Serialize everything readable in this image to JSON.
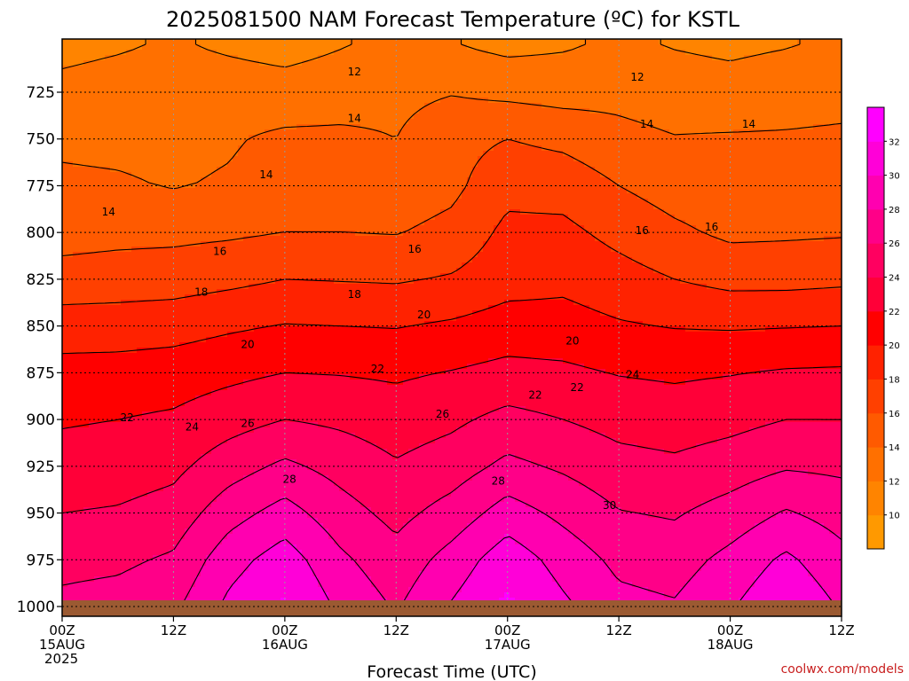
{
  "title": "2025081500 NAM Forecast Temperature (ºC) for KSTL",
  "credit": "coolwx.com/models",
  "colors": {
    "levels": [
      8,
      10,
      12,
      14,
      16,
      18,
      20,
      22,
      24,
      26,
      28,
      30,
      32,
      34
    ],
    "fills": [
      "#ff9900",
      "#ff8400",
      "#ff7000",
      "#ff5a00",
      "#ff4000",
      "#ff2200",
      "#ff0000",
      "#ff0038",
      "#ff0060",
      "#ff0088",
      "#ff00b0",
      "#ff00d8",
      "#ff00ff"
    ],
    "ground": "#9b5a32"
  },
  "chart_data": {
    "type": "heatmap",
    "title": "2025081500 NAM Forecast Temperature (ºC) for KSTL",
    "xlabel": "Forecast Time (UTC)",
    "ylabel": "",
    "x_hours": [
      0,
      6,
      12,
      18,
      24,
      30,
      36,
      42,
      48,
      54,
      60,
      66,
      72,
      78,
      84
    ],
    "y_pressure_hpa": [
      700,
      725,
      750,
      775,
      800,
      825,
      850,
      875,
      900,
      925,
      950,
      975,
      1000
    ],
    "temperature_c": [
      [
        11.5,
        11.8,
        12.2,
        11.7,
        11.3,
        11.9,
        12.4,
        12.1,
        11.5,
        11.8,
        12.3,
        11.9,
        11.6,
        11.9,
        12.3
      ],
      [
        12.5,
        12.8,
        13.2,
        13.0,
        12.8,
        13.1,
        13.5,
        13.9,
        13.5,
        13.2,
        13.4,
        13.0,
        12.8,
        13.2,
        13.4
      ],
      [
        13.7,
        13.6,
        13.5,
        13.8,
        14.4,
        14.4,
        14.0,
        15.3,
        16.0,
        15.5,
        14.6,
        14.1,
        14.2,
        14.2,
        14.3
      ],
      [
        14.3,
        14.2,
        13.9,
        14.2,
        14.9,
        14.9,
        14.8,
        15.5,
        17.4,
        17.2,
        16.0,
        15.1,
        14.6,
        14.6,
        14.7
      ],
      [
        15.2,
        15.4,
        15.5,
        15.7,
        16.0,
        16.0,
        15.9,
        16.6,
        18.5,
        18.5,
        17.4,
        16.4,
        15.6,
        15.7,
        15.8
      ],
      [
        16.8,
        17.0,
        17.1,
        17.5,
        18.0,
        17.9,
        17.8,
        18.2,
        19.2,
        19.5,
        18.8,
        18.0,
        17.4,
        17.4,
        17.6
      ],
      [
        19.0,
        19.0,
        19.2,
        19.7,
        20.1,
        20.0,
        19.9,
        20.3,
        20.9,
        20.8,
        20.2,
        19.9,
        19.8,
        19.9,
        20.0
      ],
      [
        20.7,
        20.8,
        21.0,
        21.5,
        22.0,
        21.9,
        21.7,
        22.1,
        22.6,
        22.4,
        21.9,
        21.7,
        21.9,
        22.2,
        22.3
      ],
      [
        21.8,
        22.0,
        22.3,
        23.2,
        24.0,
        23.6,
        23.0,
        23.6,
        24.6,
        24.0,
        23.3,
        23.0,
        23.4,
        24.0,
        24.0
      ],
      [
        22.8,
        23.0,
        23.5,
        25.1,
        26.4,
        25.3,
        24.2,
        25.0,
        26.5,
        25.7,
        24.7,
        24.4,
        25.0,
        25.8,
        25.6
      ],
      [
        24.0,
        24.2,
        24.8,
        27.2,
        28.8,
        26.8,
        25.4,
        26.8,
        28.9,
        27.5,
        26.1,
        25.8,
        26.8,
        28.2,
        27.2
      ],
      [
        25.4,
        25.6,
        26.3,
        29.2,
        31.0,
        28.4,
        26.7,
        28.8,
        31.2,
        29.2,
        27.5,
        27.1,
        28.6,
        30.4,
        28.6
      ],
      [
        26.5,
        26.8,
        27.6,
        30.5,
        32.3,
        29.6,
        27.8,
        30.2,
        32.4,
        30.4,
        28.6,
        28.2,
        29.8,
        31.8,
        29.8
      ]
    ],
    "contour_levels": [
      12,
      14,
      16,
      18,
      20,
      22,
      24,
      26,
      28,
      30
    ],
    "ylim": [
      700,
      1000
    ],
    "xlim": [
      0,
      84
    ],
    "ytick_labels": [
      "725",
      "750",
      "775",
      "800",
      "825",
      "850",
      "875",
      "900",
      "925",
      "950",
      "975",
      "1000"
    ],
    "xtick_labels": [
      {
        "hour": 0,
        "lines": [
          "00Z",
          "15AUG",
          "2025"
        ]
      },
      {
        "hour": 12,
        "lines": [
          "12Z"
        ]
      },
      {
        "hour": 24,
        "lines": [
          "00Z",
          "16AUG"
        ]
      },
      {
        "hour": 36,
        "lines": [
          "12Z"
        ]
      },
      {
        "hour": 48,
        "lines": [
          "00Z",
          "17AUG"
        ]
      },
      {
        "hour": 60,
        "lines": [
          "12Z"
        ]
      },
      {
        "hour": 72,
        "lines": [
          "00Z",
          "18AUG"
        ]
      },
      {
        "hour": 84,
        "lines": [
          "12Z"
        ]
      }
    ],
    "colorbar_ticks": [
      "32",
      "30",
      "28",
      "26",
      "24",
      "22",
      "20",
      "18",
      "16",
      "14",
      "12",
      "10"
    ],
    "contour_labels": [
      {
        "text": "12",
        "hour": 31.5,
        "p": 714
      },
      {
        "text": "12",
        "hour": 62,
        "p": 717
      },
      {
        "text": "14",
        "hour": 31.5,
        "p": 739
      },
      {
        "text": "14",
        "hour": 22,
        "p": 769
      },
      {
        "text": "14",
        "hour": 5,
        "p": 789
      },
      {
        "text": "14",
        "hour": 63,
        "p": 742
      },
      {
        "text": "14",
        "hour": 74,
        "p": 742
      },
      {
        "text": "16",
        "hour": 17,
        "p": 810
      },
      {
        "text": "16",
        "hour": 38,
        "p": 809
      },
      {
        "text": "16",
        "hour": 62.5,
        "p": 799
      },
      {
        "text": "16",
        "hour": 70,
        "p": 797
      },
      {
        "text": "18",
        "hour": 15,
        "p": 832
      },
      {
        "text": "18",
        "hour": 31.5,
        "p": 833
      },
      {
        "text": "20",
        "hour": 20,
        "p": 860
      },
      {
        "text": "20",
        "hour": 39,
        "p": 844
      },
      {
        "text": "20",
        "hour": 55,
        "p": 858
      },
      {
        "text": "22",
        "hour": 34,
        "p": 873
      },
      {
        "text": "22",
        "hour": 7,
        "p": 899
      },
      {
        "text": "22",
        "hour": 51,
        "p": 887
      },
      {
        "text": "22",
        "hour": 55.5,
        "p": 883
      },
      {
        "text": "24",
        "hour": 14,
        "p": 904
      },
      {
        "text": "24",
        "hour": 61.5,
        "p": 876
      },
      {
        "text": "26",
        "hour": 20,
        "p": 902
      },
      {
        "text": "26",
        "hour": 41,
        "p": 897
      },
      {
        "text": "28",
        "hour": 24.5,
        "p": 932
      },
      {
        "text": "28",
        "hour": 47,
        "p": 933
      },
      {
        "text": "30",
        "hour": 59,
        "p": 946
      }
    ]
  }
}
